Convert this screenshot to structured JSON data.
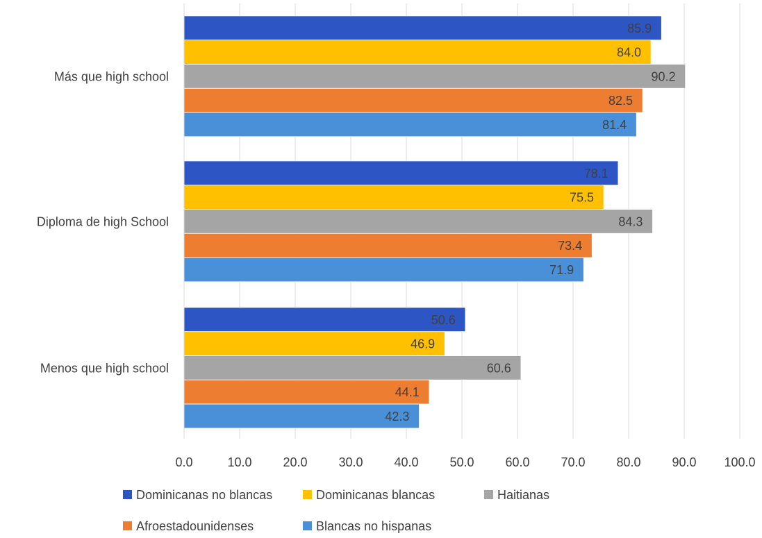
{
  "chart_data": {
    "type": "bar",
    "orientation": "horizontal",
    "categories": [
      "Más que high school",
      "Diploma de high School",
      "Menos que high school"
    ],
    "series": [
      {
        "name": "Dominicanas no blancas",
        "color": "#2E55C4",
        "values": [
          85.9,
          78.1,
          50.6
        ]
      },
      {
        "name": "Dominicanas blancas",
        "color": "#FFC000",
        "values": [
          84.0,
          75.5,
          46.9
        ]
      },
      {
        "name": "Haitianas",
        "color": "#A5A5A5",
        "values": [
          90.2,
          84.3,
          60.6
        ]
      },
      {
        "name": "Afroestadounidenses",
        "color": "#ED7D31",
        "values": [
          82.5,
          73.4,
          44.1
        ]
      },
      {
        "name": "Blancas no hispanas",
        "color": "#4A90D9",
        "values": [
          81.4,
          71.9,
          42.3
        ]
      }
    ],
    "xlim": [
      0,
      100
    ],
    "xticks": [
      "0.0",
      "10.0",
      "20.0",
      "30.0",
      "40.0",
      "50.0",
      "60.0",
      "70.0",
      "80.0",
      "90.0",
      "100.0"
    ],
    "grid": true,
    "legend_position": "bottom",
    "data_labels": true,
    "title": "",
    "xlabel": "",
    "ylabel": ""
  }
}
